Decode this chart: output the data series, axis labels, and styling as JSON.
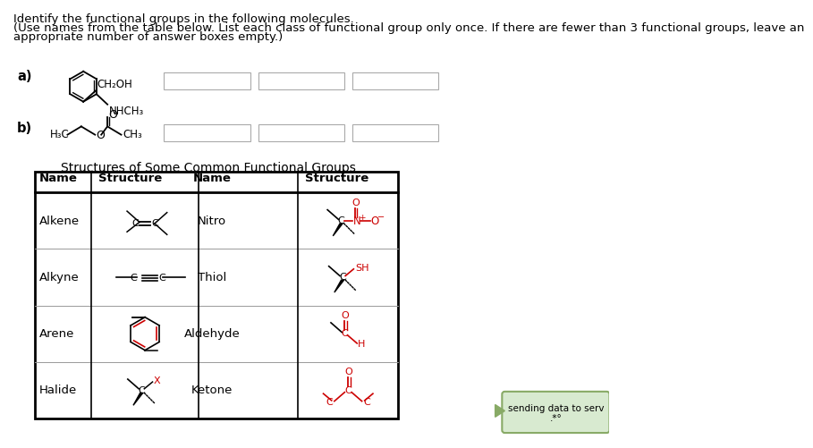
{
  "title_text1": "Identify the functional groups in the following molecules.",
  "title_text2": "(Use names from the table below. List each class of functional group only once. If there are fewer than 3 functional groups, leave an",
  "title_text3": "appropriate number of answer boxes empty.)",
  "label_a": "a)",
  "label_b": "b)",
  "table_title": "Structures of Some Common Functional Groups",
  "bg_color": "#ffffff",
  "text_color": "#000000",
  "red_color": "#cc0000",
  "font": "DejaVu Sans",
  "font_size_body": 9.5,
  "font_size_label": 10.5,
  "font_size_bold": 9.5
}
